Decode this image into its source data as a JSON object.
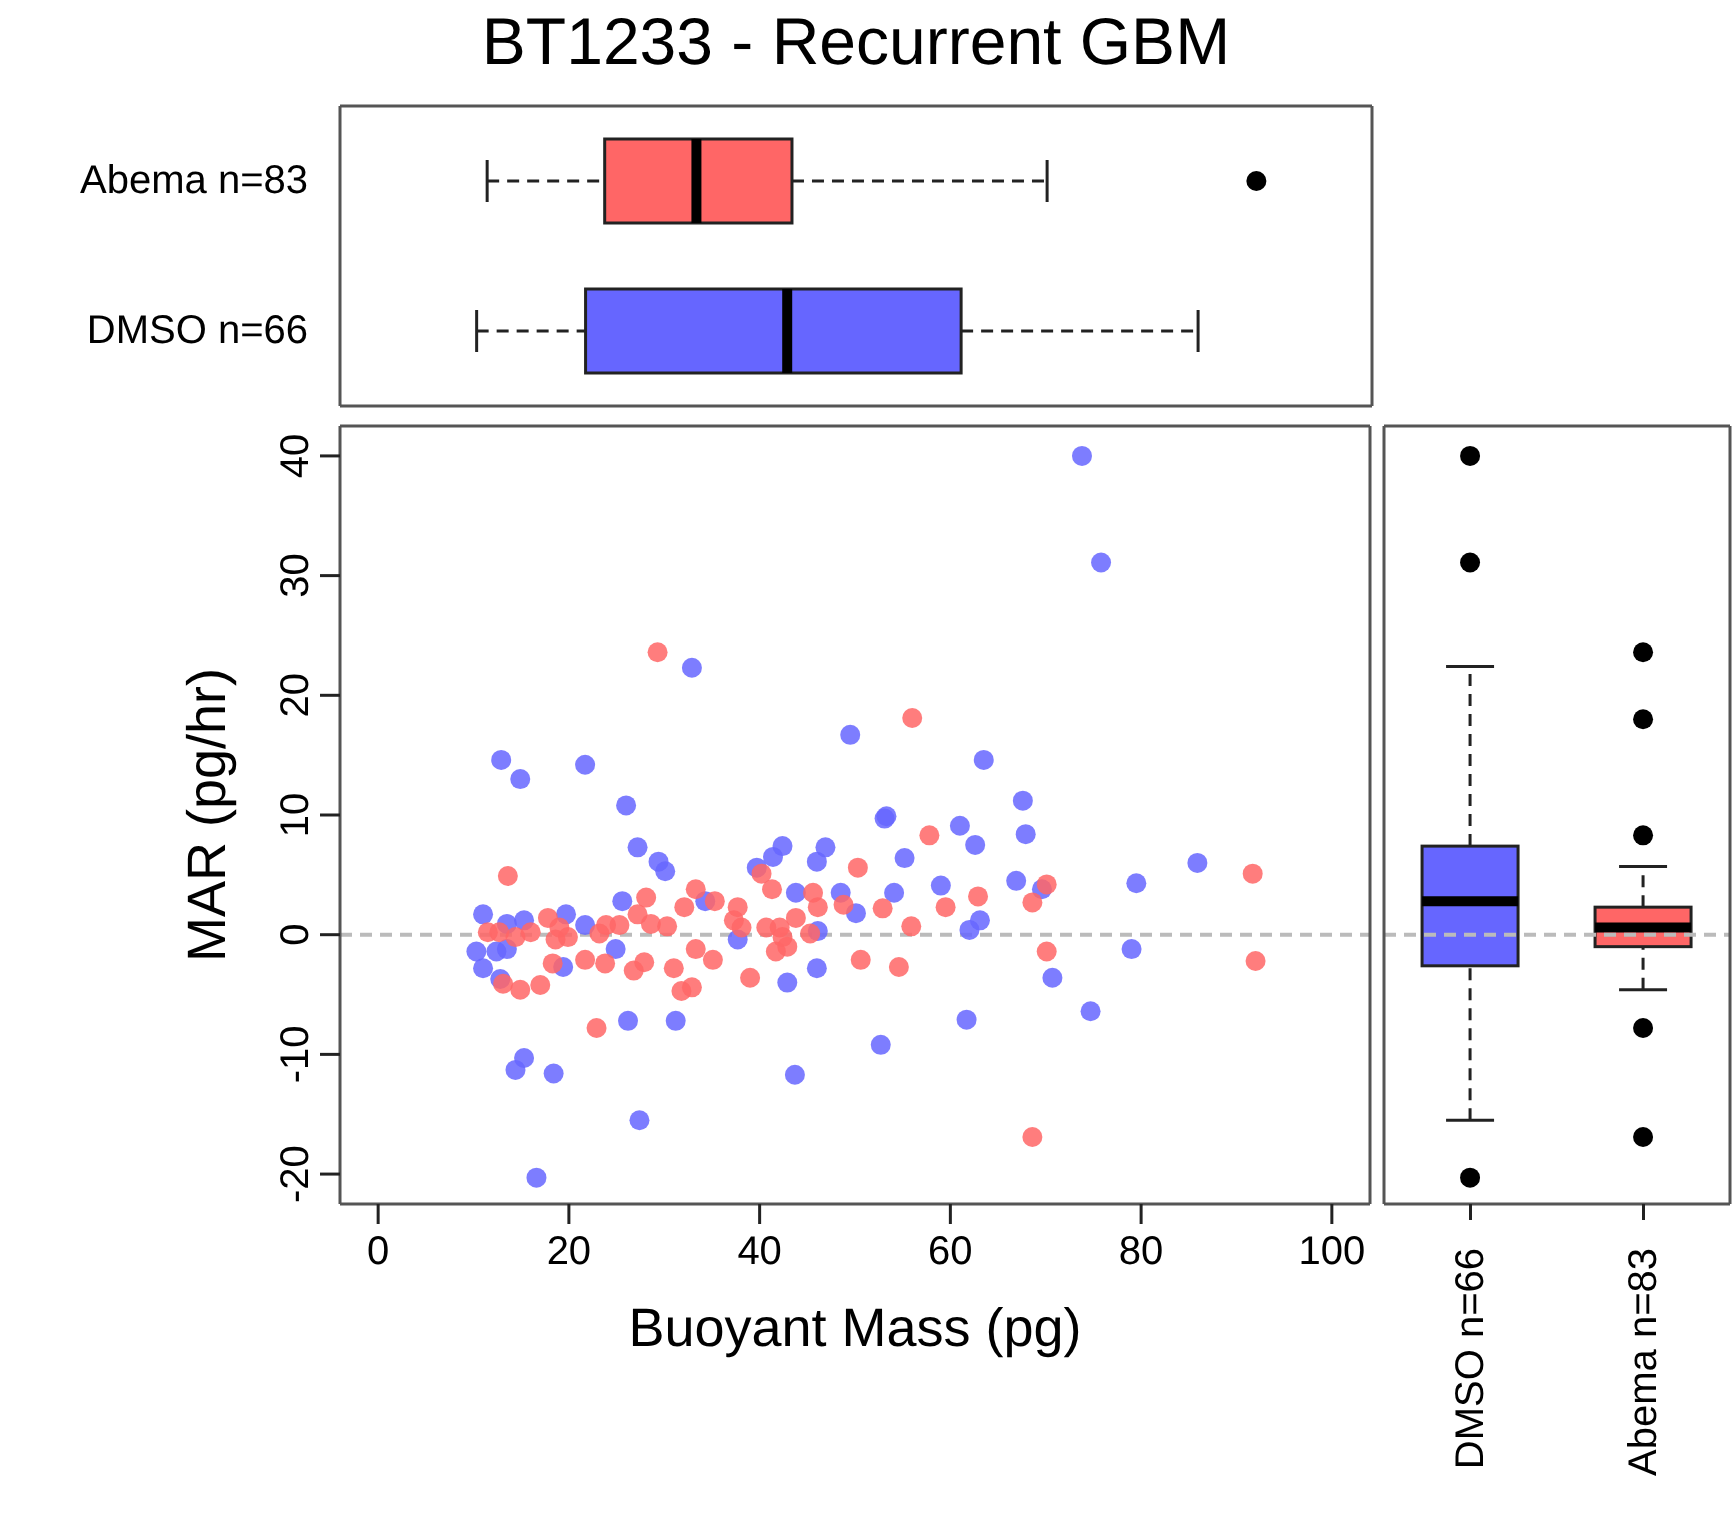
{
  "chart_data": [
    {
      "type": "box",
      "title": "BT1233 - Recurrent GBM",
      "orientation": "horizontal",
      "categories": [
        "Abema n=83",
        "DMSO n=66"
      ],
      "colors": [
        "#ff6666",
        "#6666ff"
      ],
      "boxes": [
        {
          "low": 11.4,
          "q1": 23.7,
          "median": 33.3,
          "q3": 43.3,
          "high": 70,
          "outliers": [
            91.9
          ]
        },
        {
          "low": 10.3,
          "q1": 21.7,
          "median": 42.8,
          "q3": 61,
          "high": 85.8
        }
      ],
      "xlim": [
        -4,
        104
      ],
      "tick_labels": "y"
    },
    {
      "type": "scatter",
      "xlabel": "Buoyant Mass (pg)",
      "ylabel": "MAR (pg/hr)",
      "xlim": [
        -4,
        104
      ],
      "xticks": [
        0,
        20,
        40,
        60,
        80,
        100
      ],
      "ylim": [
        -22.5,
        42.5
      ],
      "yticks": [
        -20,
        -10,
        0,
        10,
        20,
        30,
        40
      ],
      "marker": "circle",
      "ref_lines": [
        {
          "axis": "y",
          "value": 0,
          "color": "#bbbbbb",
          "line_style": "dashed"
        }
      ],
      "series": [
        {
          "color": "#6666ff",
          "x": [
            12.9,
            14.9,
            21.7,
            26.0,
            27.2,
            29.4,
            30.1,
            32.9,
            11.0,
            13.5,
            15.3,
            19.7,
            21.7,
            25.6,
            10.3,
            11.0,
            12.4,
            13.5,
            12.8,
            19.4,
            24.9,
            26.2,
            31.2,
            14.4,
            15.3,
            18.4,
            27.4,
            16.6,
            34.3,
            37.7,
            39.7,
            41.4,
            42.4,
            43.8,
            46.0,
            46.9,
            48.5,
            46.1,
            46.0,
            42.9,
            43.7,
            49.5,
            73.8,
            75.8,
            63.5,
            67.6,
            67.9,
            53.1,
            53.3,
            61.0,
            62.6,
            55.2,
            50.1,
            54.1,
            59.0,
            66.9,
            69.6,
            79.5,
            85.9,
            63.1,
            62.0,
            79.0,
            70.7,
            74.7,
            61.7,
            52.7
          ],
          "values": [
            14.6,
            13.0,
            14.2,
            10.8,
            7.3,
            6.1,
            5.3,
            22.3,
            1.7,
            0.9,
            1.2,
            1.7,
            0.8,
            2.8,
            -1.4,
            -2.8,
            -1.4,
            -1.2,
            -3.7,
            -2.7,
            -1.2,
            -7.2,
            -7.2,
            -11.3,
            -10.3,
            -11.6,
            -15.5,
            -20.3,
            2.8,
            -0.4,
            5.6,
            6.5,
            7.4,
            3.5,
            6.1,
            7.3,
            3.5,
            0.3,
            -2.8,
            -4.0,
            -11.7,
            16.7,
            40.0,
            31.1,
            14.6,
            11.2,
            8.4,
            9.7,
            9.9,
            9.1,
            7.5,
            6.4,
            1.8,
            3.5,
            4.1,
            4.5,
            3.8,
            4.3,
            6.0,
            1.2,
            0.4,
            -1.2,
            -3.6,
            -6.4,
            -7.1,
            -9.2
          ]
        },
        {
          "color": "#ff6666",
          "x": [
            29.3,
            13.6,
            11.5,
            12.7,
            14.4,
            16.0,
            17.8,
            18.6,
            19.9,
            19.0,
            18.3,
            13.1,
            14.9,
            17.0,
            21.7,
            22.9,
            23.2,
            23.9,
            25.3,
            23.8,
            27.2,
            28.1,
            28.6,
            30.3,
            26.8,
            27.9,
            31.0,
            31.8,
            32.9,
            32.1,
            33.3,
            33.3,
            35.1,
            35.3,
            37.7,
            38.1,
            39.0,
            40.2,
            41.3,
            40.7,
            42.1,
            42.4,
            42.9,
            41.7,
            43.8,
            45.3,
            45.6,
            46.1,
            48.8,
            50.3,
            37.3,
            56.0,
            57.8,
            52.9,
            55.9,
            59.5,
            62.9,
            68.6,
            70.1,
            50.6,
            54.6,
            70.1,
            68.6,
            91.7,
            92.0
          ],
          "values": [
            23.6,
            4.9,
            0.2,
            0.2,
            -0.2,
            0.2,
            1.4,
            -0.4,
            -0.2,
            0.6,
            -2.4,
            -4.1,
            -4.6,
            -4.2,
            -2.1,
            -7.8,
            0.1,
            0.8,
            0.8,
            -2.4,
            1.7,
            3.1,
            0.9,
            0.7,
            -3.0,
            -2.3,
            -2.8,
            -4.7,
            -4.4,
            2.3,
            3.8,
            -1.2,
            -2.1,
            2.8,
            2.3,
            0.6,
            -3.6,
            5.1,
            3.8,
            0.6,
            0.6,
            -0.2,
            -1.0,
            -1.4,
            1.4,
            0.1,
            3.5,
            2.3,
            2.5,
            5.6,
            1.2,
            18.1,
            8.3,
            2.2,
            0.7,
            2.3,
            3.2,
            2.7,
            4.2,
            -2.1,
            -2.7,
            -1.4,
            -16.9,
            5.1,
            -2.2
          ]
        }
      ]
    },
    {
      "type": "box",
      "categories": [
        "DMSO n=66",
        "Abema n=83"
      ],
      "colors": [
        "#6666ff",
        "#ff6666"
      ],
      "boxes": [
        {
          "low": -15.5,
          "q1": -2.6,
          "median": 2.8,
          "q3": 7.4,
          "high": 22.4,
          "outliers": [
            40,
            31.1,
            -20.3
          ]
        },
        {
          "low": -4.6,
          "q1": -1.0,
          "median": 0.6,
          "q3": 2.3,
          "high": 5.7,
          "outliers": [
            23.6,
            18.0,
            8.3,
            -7.8,
            -16.9
          ]
        }
      ],
      "ylim": [
        -22.5,
        42.5
      ],
      "tick_labels": "x",
      "ref_lines": [
        {
          "axis": "y",
          "value": 0,
          "color": "#bbbbbb",
          "line_style": "dashed"
        }
      ]
    }
  ]
}
